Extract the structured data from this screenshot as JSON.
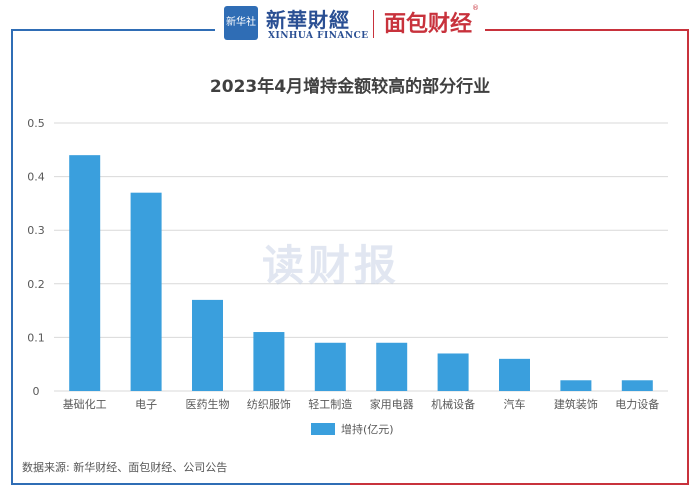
{
  "header": {
    "logo_box_text": "新华社",
    "xinhua_cn": "新華財經",
    "xinhua_en": "XINHUA FINANCE",
    "mianbao": "面包财经",
    "mianbao_mark": "®"
  },
  "watermark": "读财报",
  "source": "数据来源: 新华财经、面包财经、公司公告",
  "colors": {
    "bar": "#3a9fdd",
    "frame_left": "#2f6db5",
    "frame_right": "#c8323c",
    "grid": "#d9d9d9",
    "text": "#595959"
  },
  "chart_data": {
    "type": "bar",
    "title": "2023年4月增持金额较高的部分行业",
    "categories": [
      "基础化工",
      "电子",
      "医药生物",
      "纺织服饰",
      "轻工制造",
      "家用电器",
      "机械设备",
      "汽车",
      "建筑装饰",
      "电力设备"
    ],
    "series": [
      {
        "name": "增持(亿元)",
        "values": [
          0.44,
          0.37,
          0.17,
          0.11,
          0.09,
          0.09,
          0.07,
          0.06,
          0.02,
          0.02
        ]
      }
    ],
    "yticks": [
      "0",
      "0.1",
      "0.2",
      "0.3",
      "0.4",
      "0.5"
    ],
    "ylim": [
      0,
      0.5
    ],
    "grid": true,
    "legend": "bottom-center"
  }
}
